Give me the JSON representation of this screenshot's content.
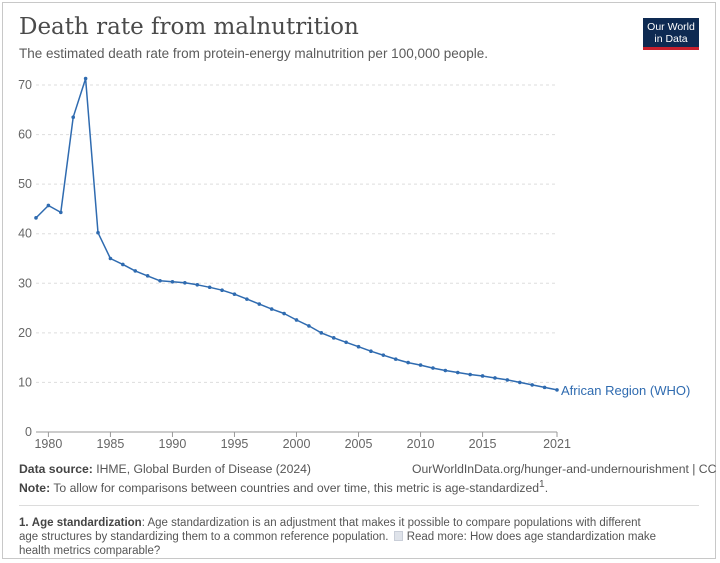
{
  "header": {
    "title": "Death rate from malnutrition",
    "subtitle": "The estimated death rate from protein-energy malnutrition per 100,000 people."
  },
  "logo": {
    "line1": "Our World",
    "line2": "in Data"
  },
  "chart_data": {
    "type": "line",
    "title": "Death rate from malnutrition",
    "xlabel": "",
    "ylabel": "",
    "xlim": [
      1979,
      2021
    ],
    "ylim": [
      0,
      70
    ],
    "x_ticks": [
      "1980",
      "1985",
      "1990",
      "1995",
      "2000",
      "2005",
      "2010",
      "2015",
      "2021"
    ],
    "y_ticks": [
      "0",
      "10",
      "20",
      "30",
      "40",
      "50",
      "60",
      "70"
    ],
    "grid": true,
    "series": [
      {
        "name": "African Region (WHO)",
        "color": "#2f6bb0",
        "x": [
          1979,
          1980,
          1981,
          1982,
          1983,
          1984,
          1985,
          1986,
          1987,
          1988,
          1989,
          1990,
          1991,
          1992,
          1993,
          1994,
          1995,
          1996,
          1997,
          1998,
          1999,
          2000,
          2001,
          2002,
          2003,
          2004,
          2005,
          2006,
          2007,
          2008,
          2009,
          2010,
          2011,
          2012,
          2013,
          2014,
          2015,
          2016,
          2017,
          2018,
          2019,
          2020,
          2021
        ],
        "y": [
          43.2,
          45.7,
          44.3,
          63.5,
          71.3,
          40.2,
          35.0,
          33.8,
          32.5,
          31.5,
          30.5,
          30.3,
          30.1,
          29.7,
          29.2,
          28.6,
          27.8,
          26.8,
          25.8,
          24.8,
          23.9,
          22.6,
          21.4,
          20.0,
          19.0,
          18.1,
          17.2,
          16.3,
          15.5,
          14.7,
          14.0,
          13.5,
          12.9,
          12.4,
          12.0,
          11.6,
          11.3,
          10.9,
          10.5,
          10.0,
          9.5,
          9.0,
          8.5
        ]
      }
    ]
  },
  "footer": {
    "source_label": "Data source:",
    "source_text": "IHME, Global Burden of Disease (2024)",
    "url": "OurWorldInData.org/hunger-and-undernourishment | CC BY",
    "note_label": "Note:",
    "note_text": "To allow for comparisons between countries and over time, this metric is age-standardized",
    "note_sup": "1",
    "note_end": "."
  },
  "footnote": {
    "number": "1.",
    "term": "Age standardization",
    "text": ": Age standardization is an adjustment that makes it possible to compare populations with different age structures by standardizing them to a common reference population.",
    "read_more": "Read more: How does age standardization make health metrics comparable?"
  }
}
